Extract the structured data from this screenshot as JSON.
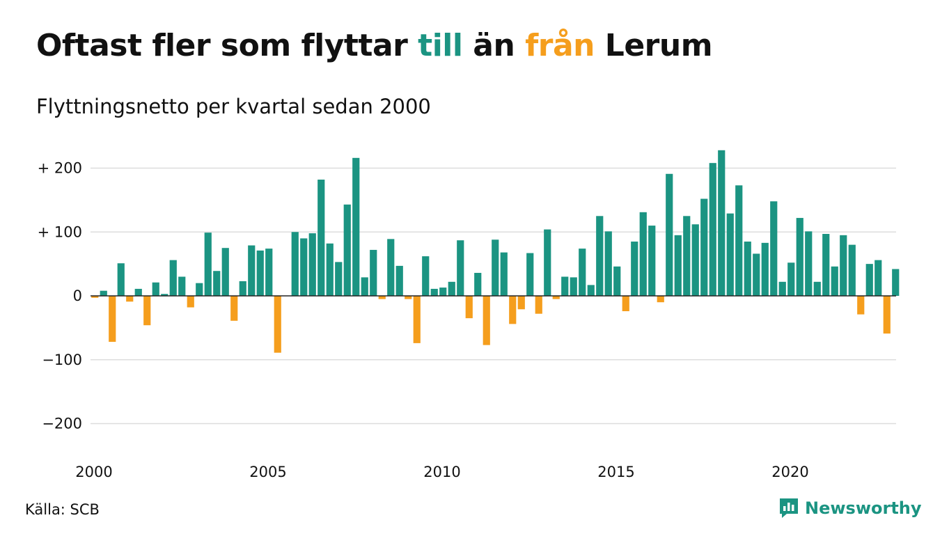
{
  "header": {
    "title_parts": [
      "Oftast fler som flyttar ",
      "till",
      " än ",
      "från",
      " Lerum"
    ],
    "subtitle": "Flyttningsnetto per kvartal sedan 2000"
  },
  "footer": {
    "source": "Källa: SCB",
    "brand": "Newsworthy",
    "brand_icon": "bar-chart-speech-bubble-icon"
  },
  "colors": {
    "positive": "#1b9482",
    "negative": "#f59e1d",
    "grid": "#dddddd",
    "zero_line": "#222222",
    "text": "#111111"
  },
  "chart_data": {
    "type": "bar",
    "title": "Oftast fler som flyttar till än från Lerum",
    "subtitle": "Flyttningsnetto per kvartal sedan 2000",
    "xlabel": "",
    "ylabel": "",
    "ylim": [
      -220,
      240
    ],
    "y_ticks": [
      {
        "value": 200,
        "label": "+ 200"
      },
      {
        "value": 100,
        "label": "+ 100"
      },
      {
        "value": 0,
        "label": "0"
      },
      {
        "value": -100,
        "label": "−100"
      },
      {
        "value": -200,
        "label": "−200"
      }
    ],
    "x_ticks": [
      "2000",
      "2005",
      "2010",
      "2015",
      "2020"
    ],
    "start_year": 2000,
    "periods_per_year": 4,
    "grid": true,
    "legend": "none",
    "values": [
      -3,
      8,
      -72,
      51,
      -9,
      11,
      -46,
      21,
      3,
      56,
      30,
      -18,
      20,
      99,
      39,
      75,
      -39,
      23,
      79,
      71,
      74,
      -89,
      0,
      100,
      90,
      98,
      182,
      82,
      53,
      143,
      216,
      29,
      72,
      -5,
      89,
      47,
      -5,
      -74,
      62,
      11,
      13,
      22,
      87,
      -35,
      36,
      -77,
      88,
      68,
      -44,
      -21,
      67,
      -28,
      104,
      -5,
      30,
      29,
      74,
      17,
      125,
      101,
      46,
      -24,
      85,
      131,
      110,
      -10,
      191,
      95,
      125,
      112,
      152,
      208,
      228,
      129,
      173,
      85,
      66,
      83,
      148,
      22,
      52,
      122,
      101,
      22,
      97,
      46,
      95,
      80,
      -29,
      50,
      56,
      -59,
      42
    ]
  }
}
